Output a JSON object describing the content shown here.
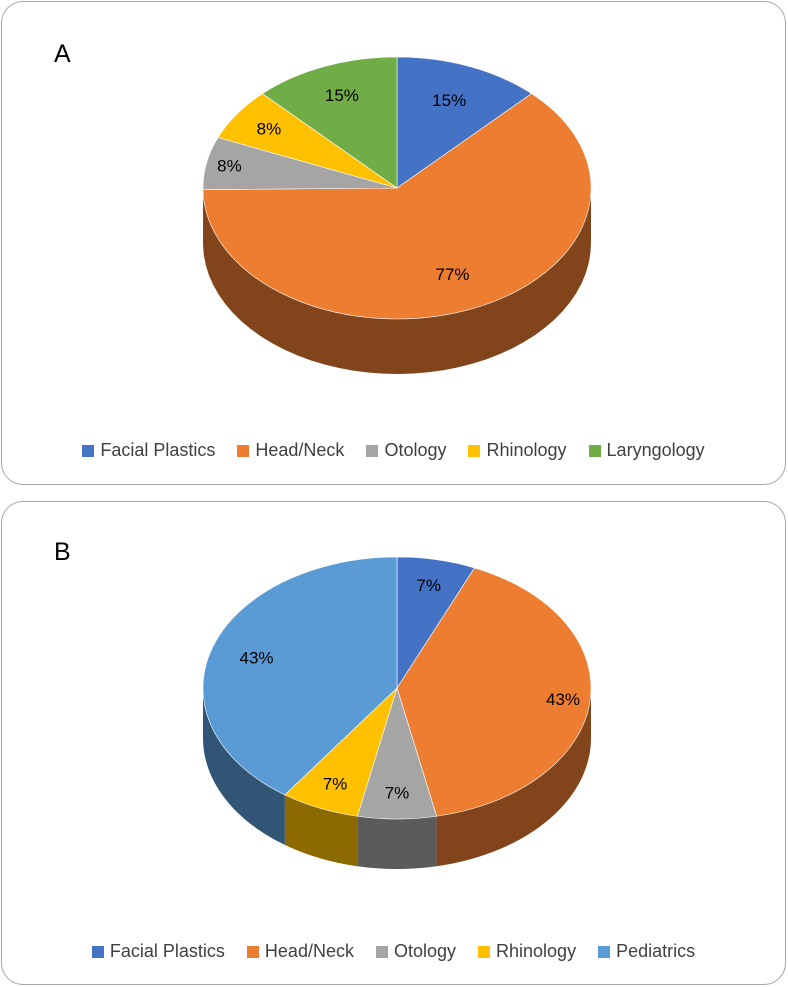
{
  "chart_data": [
    {
      "panel": "A",
      "type": "pie",
      "categories": [
        "Facial Plastics",
        "Head/Neck",
        "Otology",
        "Rhinology",
        "Laryngology"
      ],
      "values": [
        15,
        77,
        8,
        8,
        15
      ],
      "labels": [
        "15%",
        "77%",
        "8%",
        "8%",
        "15%"
      ],
      "colors": [
        "#4472c4",
        "#ed7d31",
        "#a5a5a5",
        "#ffc000",
        "#70ad47"
      ],
      "legend": "bottom",
      "style": "3d"
    },
    {
      "panel": "B",
      "type": "pie",
      "categories": [
        "Facial Plastics",
        "Head/Neck",
        "Otology",
        "Rhinology",
        "Pediatrics"
      ],
      "values": [
        7,
        43,
        7,
        7,
        43
      ],
      "labels": [
        "7%",
        "43%",
        "7%",
        "7%",
        "43%"
      ],
      "colors": [
        "#4472c4",
        "#ed7d31",
        "#a5a5a5",
        "#ffc000",
        "#5b9bd5"
      ],
      "legend": "bottom",
      "style": "3d"
    }
  ]
}
